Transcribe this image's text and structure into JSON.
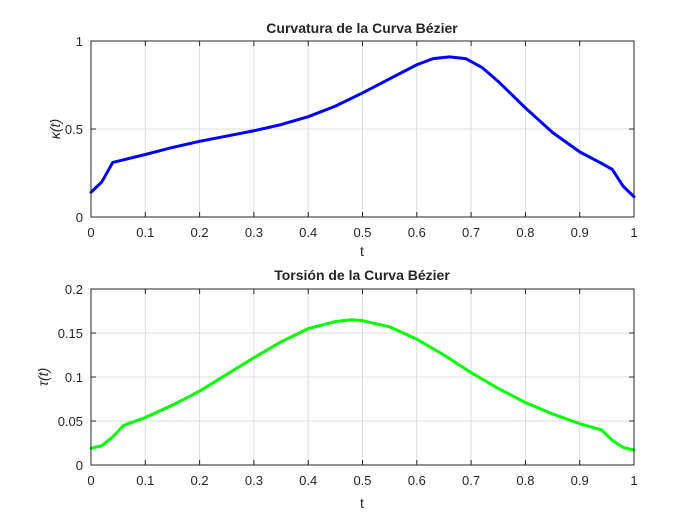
{
  "chart_data": [
    {
      "type": "line",
      "title": "Curvatura de la Curva Bézier",
      "xlabel": "t",
      "ylabel": "κ(t)",
      "xlim": [
        0,
        1
      ],
      "ylim": [
        0,
        1
      ],
      "xticks": [
        "0",
        "0.1",
        "0.2",
        "0.3",
        "0.4",
        "0.5",
        "0.6",
        "0.7",
        "0.8",
        "0.9",
        "1"
      ],
      "yticks": [
        "0",
        "0.5",
        "1"
      ],
      "grid": true,
      "color": "#0000ff",
      "series": [
        {
          "x": [
            0,
            0.02,
            0.04,
            0.06,
            0.1,
            0.15,
            0.2,
            0.25,
            0.3,
            0.35,
            0.4,
            0.45,
            0.5,
            0.55,
            0.6,
            0.63,
            0.66,
            0.69,
            0.72,
            0.75,
            0.8,
            0.85,
            0.9,
            0.94,
            0.96,
            0.98,
            1
          ],
          "y": [
            0.14,
            0.2,
            0.31,
            0.325,
            0.355,
            0.395,
            0.43,
            0.46,
            0.49,
            0.525,
            0.57,
            0.63,
            0.705,
            0.785,
            0.865,
            0.9,
            0.91,
            0.9,
            0.85,
            0.77,
            0.62,
            0.48,
            0.37,
            0.305,
            0.27,
            0.175,
            0.115
          ]
        }
      ]
    },
    {
      "type": "line",
      "title": "Torsión de la Curva Bézier",
      "xlabel": "t",
      "ylabel": "τ(t)",
      "xlim": [
        0,
        1
      ],
      "ylim": [
        0,
        0.2
      ],
      "xticks": [
        "0",
        "0.1",
        "0.2",
        "0.3",
        "0.4",
        "0.5",
        "0.6",
        "0.7",
        "0.8",
        "0.9",
        "1"
      ],
      "yticks": [
        "0",
        "0.05",
        "0.1",
        "0.15",
        "0.2"
      ],
      "grid": true,
      "color": "#00ff00",
      "series": [
        {
          "x": [
            0,
            0.02,
            0.04,
            0.06,
            0.1,
            0.15,
            0.2,
            0.25,
            0.3,
            0.35,
            0.4,
            0.45,
            0.48,
            0.5,
            0.55,
            0.6,
            0.65,
            0.7,
            0.75,
            0.8,
            0.85,
            0.9,
            0.94,
            0.96,
            0.98,
            1
          ],
          "y": [
            0.019,
            0.022,
            0.032,
            0.045,
            0.054,
            0.068,
            0.084,
            0.103,
            0.122,
            0.14,
            0.155,
            0.163,
            0.165,
            0.164,
            0.157,
            0.143,
            0.125,
            0.105,
            0.087,
            0.071,
            0.058,
            0.047,
            0.04,
            0.028,
            0.02,
            0.017
          ]
        }
      ]
    }
  ]
}
